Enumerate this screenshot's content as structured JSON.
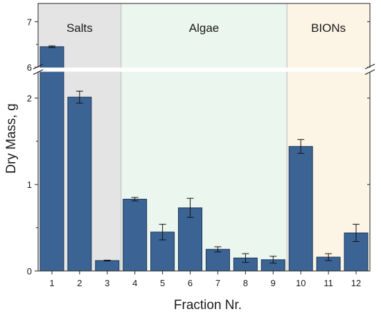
{
  "chart_data": {
    "type": "bar",
    "xlabel": "Fraction Nr.",
    "ylabel": "Dry Mass, g",
    "y_axis_break": {
      "from": 2.3,
      "to": 6.0
    },
    "lower_ylim": [
      0,
      2.3
    ],
    "upper_ylim": [
      6.0,
      7.4
    ],
    "yticks": [
      "0",
      "1",
      "2",
      "6",
      "7"
    ],
    "categories": [
      "1",
      "2",
      "3",
      "4",
      "5",
      "6",
      "7",
      "8",
      "9",
      "10",
      "11",
      "12"
    ],
    "values": [
      6.45,
      2.01,
      0.12,
      0.83,
      0.45,
      0.73,
      0.25,
      0.15,
      0.13,
      1.44,
      0.16,
      0.44
    ],
    "errors": [
      0.02,
      0.07,
      0.005,
      0.02,
      0.09,
      0.11,
      0.03,
      0.05,
      0.04,
      0.08,
      0.04,
      0.1
    ],
    "regions": [
      {
        "label": "Salts",
        "from": 1,
        "to": 3,
        "color": "#e4e4e4"
      },
      {
        "label": "Algae",
        "from": 4,
        "to": 9,
        "color": "#ebf6ee"
      },
      {
        "label": "BIONs",
        "from": 10,
        "to": 12,
        "color": "#fcf5e6"
      }
    ],
    "bar_color": "#3b6394",
    "grid": false
  }
}
